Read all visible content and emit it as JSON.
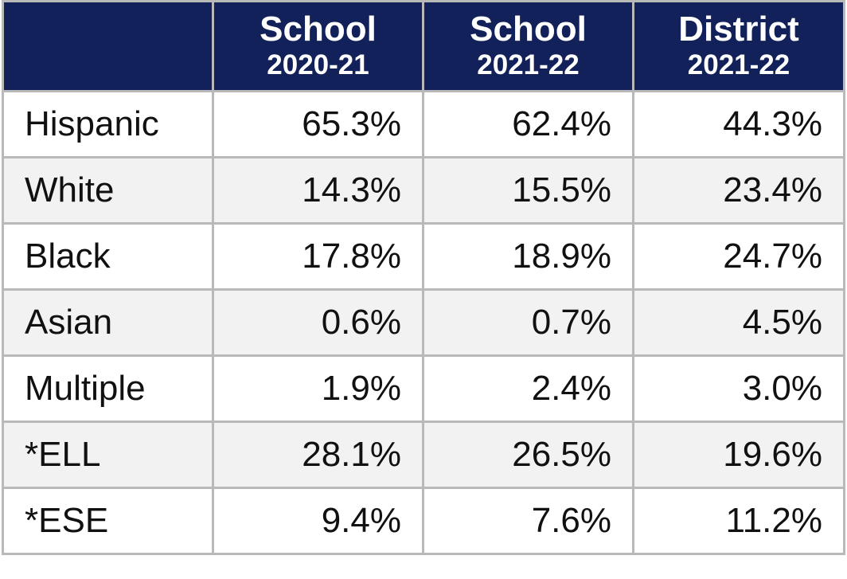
{
  "table": {
    "header": [
      {
        "title": "School",
        "subtitle": "2020-21"
      },
      {
        "title": "School",
        "subtitle": "2021-22"
      },
      {
        "title": "District",
        "subtitle": "2021-22"
      }
    ],
    "rows": [
      [
        "Hispanic",
        "65.3%",
        "62.4%",
        "44.3%"
      ],
      [
        "White",
        "14.3%",
        "15.5%",
        "23.4%"
      ],
      [
        "Black",
        "17.8%",
        "18.9%",
        "24.7%"
      ],
      [
        "Asian",
        "0.6%",
        "0.7%",
        "4.5%"
      ],
      [
        "Multiple",
        "1.9%",
        "2.4%",
        "3.0%"
      ],
      [
        "*ELL",
        "28.1%",
        "26.5%",
        "19.6%"
      ],
      [
        "*ESE",
        "9.4%",
        "7.6%",
        "11.2%"
      ]
    ]
  }
}
